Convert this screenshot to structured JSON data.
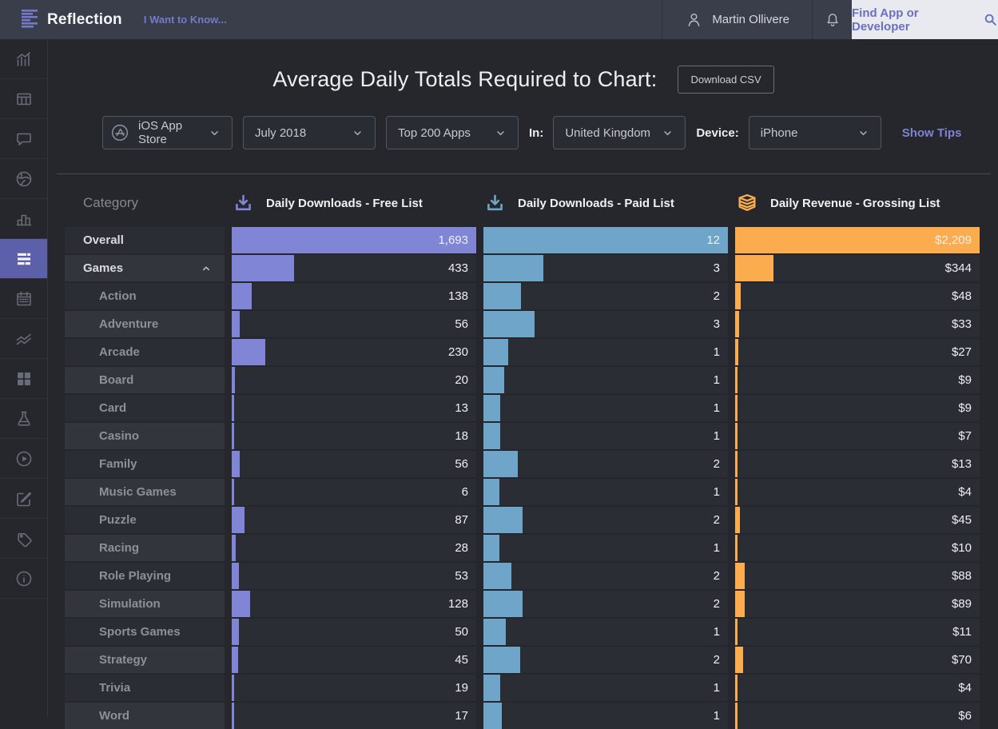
{
  "topbar": {
    "logo_text": "Reflection",
    "menu_label": "I Want to Know...",
    "user_name": "Martin Ollivere",
    "search_placeholder": "Find App or Developer"
  },
  "page": {
    "title": "Average Daily Totals Required to Chart:",
    "download_csv_label": "Download CSV"
  },
  "filters": {
    "store": "iOS App Store",
    "month": "July 2018",
    "list_size": "Top 200 Apps",
    "in_label": "In:",
    "country": "United Kingdom",
    "device_label": "Device:",
    "device": "iPhone",
    "show_tips_label": "Show Tips"
  },
  "sidebar": {
    "items": [
      {
        "icon": "bar-chart-trend-icon",
        "active": false
      },
      {
        "icon": "table-icon",
        "active": false
      },
      {
        "icon": "comment-icon",
        "active": false
      },
      {
        "icon": "globe-icon",
        "active": false
      },
      {
        "icon": "column-chart-icon",
        "active": false
      },
      {
        "icon": "horizontal-bars-icon",
        "active": true
      },
      {
        "icon": "calendar-icon",
        "active": false
      },
      {
        "icon": "line-chart-icon",
        "active": false
      },
      {
        "icon": "grid-icon",
        "active": false
      },
      {
        "icon": "flask-icon",
        "active": false
      },
      {
        "icon": "play-circle-icon",
        "active": false
      },
      {
        "icon": "compose-icon",
        "active": false
      },
      {
        "icon": "tag-icon",
        "active": false
      },
      {
        "icon": "info-icon",
        "active": false
      }
    ]
  },
  "colors": {
    "free_bar": "#8185d6",
    "paid_bar": "#6fa5c9",
    "gross_bar": "#fbac4e",
    "accent_purple": "#7579c9",
    "topbar_bg": "#3a3e4b",
    "page_bg": "#25272d"
  },
  "table": {
    "category_header": "Category",
    "columns": [
      {
        "title": "Daily Downloads - Free List",
        "icon": "download-icon",
        "color": "#8185d6"
      },
      {
        "title": "Daily Downloads - Paid List",
        "icon": "download-icon",
        "color": "#6fa5c9"
      },
      {
        "title": "Daily Revenue - Grossing List",
        "icon": "layers-icon",
        "color": "#fbac4e"
      }
    ],
    "rows": [
      {
        "category": "Overall",
        "level": 0,
        "expandable": false,
        "cells": [
          {
            "label": "1,693",
            "pct": 100
          },
          {
            "label": "12",
            "pct": 100
          },
          {
            "label": "$2,209",
            "pct": 100
          }
        ]
      },
      {
        "category": "Games",
        "level": 0,
        "expandable": true,
        "cells": [
          {
            "label": "433",
            "pct": 25.6
          },
          {
            "label": "3",
            "pct": 24.5
          },
          {
            "label": "$344",
            "pct": 15.6
          }
        ]
      },
      {
        "category": "Action",
        "level": 1,
        "expandable": false,
        "cells": [
          {
            "label": "138",
            "pct": 8.2
          },
          {
            "label": "2",
            "pct": 15.5
          },
          {
            "label": "$48",
            "pct": 2.2
          }
        ]
      },
      {
        "category": "Adventure",
        "level": 1,
        "expandable": false,
        "cells": [
          {
            "label": "56",
            "pct": 3.3
          },
          {
            "label": "3",
            "pct": 21
          },
          {
            "label": "$33",
            "pct": 1.5
          }
        ]
      },
      {
        "category": "Arcade",
        "level": 1,
        "expandable": false,
        "cells": [
          {
            "label": "230",
            "pct": 13.6
          },
          {
            "label": "1",
            "pct": 10
          },
          {
            "label": "$27",
            "pct": 1.2
          }
        ]
      },
      {
        "category": "Board",
        "level": 1,
        "expandable": false,
        "cells": [
          {
            "label": "20",
            "pct": 1.2
          },
          {
            "label": "1",
            "pct": 8.5
          },
          {
            "label": "$9",
            "pct": 0.4
          }
        ]
      },
      {
        "category": "Card",
        "level": 1,
        "expandable": false,
        "cells": [
          {
            "label": "13",
            "pct": 0.8
          },
          {
            "label": "1",
            "pct": 7
          },
          {
            "label": "$9",
            "pct": 0.4
          }
        ]
      },
      {
        "category": "Casino",
        "level": 1,
        "expandable": false,
        "cells": [
          {
            "label": "18",
            "pct": 1.1
          },
          {
            "label": "1",
            "pct": 7
          },
          {
            "label": "$7",
            "pct": 0.3
          }
        ]
      },
      {
        "category": "Family",
        "level": 1,
        "expandable": false,
        "cells": [
          {
            "label": "56",
            "pct": 3.3
          },
          {
            "label": "2",
            "pct": 14
          },
          {
            "label": "$13",
            "pct": 0.6
          }
        ]
      },
      {
        "category": "Music Games",
        "level": 1,
        "expandable": false,
        "cells": [
          {
            "label": "6",
            "pct": 0.4
          },
          {
            "label": "1",
            "pct": 6.5
          },
          {
            "label": "$4",
            "pct": 0.2
          }
        ]
      },
      {
        "category": "Puzzle",
        "level": 1,
        "expandable": false,
        "cells": [
          {
            "label": "87",
            "pct": 5.1
          },
          {
            "label": "2",
            "pct": 16
          },
          {
            "label": "$45",
            "pct": 2.0
          }
        ]
      },
      {
        "category": "Racing",
        "level": 1,
        "expandable": false,
        "cells": [
          {
            "label": "28",
            "pct": 1.7
          },
          {
            "label": "1",
            "pct": 6.5
          },
          {
            "label": "$10",
            "pct": 0.45
          }
        ]
      },
      {
        "category": "Role Playing",
        "level": 1,
        "expandable": false,
        "cells": [
          {
            "label": "53",
            "pct": 3.1
          },
          {
            "label": "2",
            "pct": 11.5
          },
          {
            "label": "$88",
            "pct": 4.0
          }
        ]
      },
      {
        "category": "Simulation",
        "level": 1,
        "expandable": false,
        "cells": [
          {
            "label": "128",
            "pct": 7.6
          },
          {
            "label": "2",
            "pct": 16
          },
          {
            "label": "$89",
            "pct": 4.0
          }
        ]
      },
      {
        "category": "Sports Games",
        "level": 1,
        "expandable": false,
        "cells": [
          {
            "label": "50",
            "pct": 3.0
          },
          {
            "label": "1",
            "pct": 9
          },
          {
            "label": "$11",
            "pct": 0.5
          }
        ]
      },
      {
        "category": "Strategy",
        "level": 1,
        "expandable": false,
        "cells": [
          {
            "label": "45",
            "pct": 2.7
          },
          {
            "label": "2",
            "pct": 15
          },
          {
            "label": "$70",
            "pct": 3.2
          }
        ]
      },
      {
        "category": "Trivia",
        "level": 1,
        "expandable": false,
        "cells": [
          {
            "label": "19",
            "pct": 1.1
          },
          {
            "label": "1",
            "pct": 7
          },
          {
            "label": "$4",
            "pct": 0.2
          }
        ]
      },
      {
        "category": "Word",
        "level": 1,
        "expandable": false,
        "cells": [
          {
            "label": "17",
            "pct": 1.0
          },
          {
            "label": "1",
            "pct": 7.5
          },
          {
            "label": "$6",
            "pct": 0.3
          }
        ]
      }
    ]
  }
}
